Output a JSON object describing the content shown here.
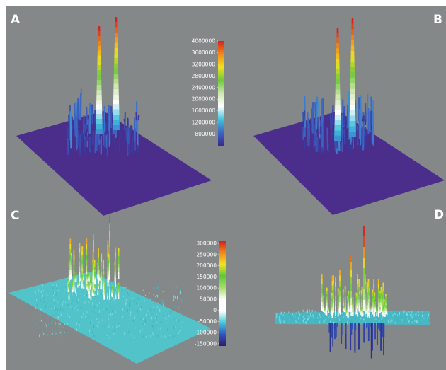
{
  "chart_data": {
    "type": "surface3d",
    "title": "",
    "panels": [
      {
        "label": "A",
        "baseline_color": "#4b2d8c"
      },
      {
        "label": "B",
        "baseline_color": "#4b2d8c"
      },
      {
        "label": "C",
        "baseline_color": "#52c4c9"
      },
      {
        "label": "D",
        "baseline_color": "#52c4c9"
      }
    ],
    "colorbars": [
      {
        "id": "top",
        "applies_to": [
          "A",
          "B"
        ],
        "range": [
          400000,
          4000000
        ],
        "tick_labels": [
          "4000000",
          "3600000",
          "3200000",
          "2800000",
          "2400000",
          "2000000",
          "1600000",
          "1200000",
          "800000"
        ],
        "colors": [
          "#3a2a8c",
          "#3d63c4",
          "#3fc2dd",
          "#ffffff",
          "#cfe7b0",
          "#6fc83a",
          "#f1e31f",
          "#f08a1c",
          "#d9201a"
        ]
      },
      {
        "id": "bottom",
        "applies_to": [
          "C",
          "D"
        ],
        "range": [
          -160000,
          310000
        ],
        "tick_labels": [
          "300000",
          "250000",
          "200000",
          "150000",
          "100000",
          "50000",
          "0",
          "-50000",
          "-100000",
          "-150000"
        ],
        "colors": [
          "#2d1a6e",
          "#2f55c0",
          "#43c8dc",
          "#ffffff",
          "#ffffff",
          "#a8dd6a",
          "#5cc83a",
          "#f1e31f",
          "#f08a1c",
          "#d9201a"
        ]
      }
    ]
  }
}
